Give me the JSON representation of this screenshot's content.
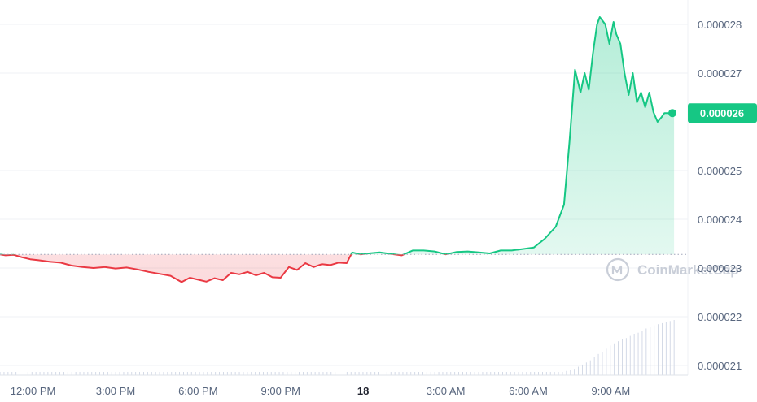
{
  "chart_data": {
    "type": "area",
    "y_ticks": [
      "0.000028",
      "0.000027",
      "0.000025",
      "0.000024",
      "0.000023",
      "0.000022",
      "0.000021"
    ],
    "y_tick_values": [
      2.8e-05,
      2.7e-05,
      2.5e-05,
      2.4e-05,
      2.3e-05,
      2.2e-05,
      2.1e-05
    ],
    "ylim": [
      2.08e-05,
      2.85e-05
    ],
    "baseline": 2.328e-05,
    "current_price": "0.000026",
    "current_value": 2.618e-05,
    "x_ticks": [
      "12:00 PM",
      "3:00 PM",
      "6:00 PM",
      "9:00 PM",
      "18",
      "3:00 AM",
      "6:00 AM",
      "9:00 AM"
    ],
    "x_tick_hours": [
      12,
      15,
      18,
      21,
      24,
      27,
      30,
      33
    ],
    "xlim": [
      10.8,
      35.8
    ],
    "bold_x_tick": "18",
    "colors": {
      "up": "#16c784",
      "down": "#ea3943",
      "volume": "#cfd6e4",
      "grid": "#eff2f5"
    },
    "series": [
      {
        "x": [
          10.8,
          11.0,
          11.3,
          11.6,
          11.9,
          12.2,
          12.6,
          13.0,
          13.4,
          13.8,
          14.2,
          14.6,
          15.0,
          15.4,
          15.8,
          16.2,
          16.6,
          17.0,
          17.4,
          17.7,
          18.0,
          18.3,
          18.6,
          18.9,
          19.2,
          19.5,
          19.8,
          20.1,
          20.4,
          20.7,
          21.0,
          21.3,
          21.6,
          21.9,
          22.2,
          22.5,
          22.8,
          23.1,
          23.4,
          23.6,
          23.9,
          24.2,
          24.6,
          25.0,
          25.4,
          25.8,
          26.2,
          26.6,
          27.0,
          27.4,
          27.8,
          28.2,
          28.6,
          29.0,
          29.4,
          29.8,
          30.2,
          30.6,
          31.0,
          31.3,
          31.5,
          31.7,
          31.9,
          32.05,
          32.2,
          32.35,
          32.5,
          32.6,
          32.8,
          32.95,
          33.1,
          33.2,
          33.35,
          33.5,
          33.65,
          33.8,
          33.95,
          34.1,
          34.25,
          34.4,
          34.55,
          34.7,
          34.85,
          34.95,
          35.1,
          35.3
        ],
        "values": [
          2.328e-05,
          2.326e-05,
          2.327e-05,
          2.322e-05,
          2.318e-05,
          2.316e-05,
          2.313e-05,
          2.311e-05,
          2.305e-05,
          2.302e-05,
          2.3e-05,
          2.302e-05,
          2.299e-05,
          2.301e-05,
          2.297e-05,
          2.292e-05,
          2.288e-05,
          2.284e-05,
          2.271e-05,
          2.28e-05,
          2.276e-05,
          2.272e-05,
          2.279e-05,
          2.275e-05,
          2.29e-05,
          2.287e-05,
          2.292e-05,
          2.285e-05,
          2.29e-05,
          2.281e-05,
          2.28e-05,
          2.302e-05,
          2.296e-05,
          2.31e-05,
          2.302e-05,
          2.308e-05,
          2.306e-05,
          2.311e-05,
          2.31e-05,
          2.332e-05,
          2.328e-05,
          2.33e-05,
          2.332e-05,
          2.329e-05,
          2.326e-05,
          2.336e-05,
          2.336e-05,
          2.334e-05,
          2.328e-05,
          2.333e-05,
          2.334e-05,
          2.332e-05,
          2.33e-05,
          2.336e-05,
          2.336e-05,
          2.339e-05,
          2.342e-05,
          2.36e-05,
          2.385e-05,
          2.43e-05,
          2.56e-05,
          2.707e-05,
          2.66e-05,
          2.7e-05,
          2.666e-05,
          2.74e-05,
          2.8e-05,
          2.815e-05,
          2.8e-05,
          2.76e-05,
          2.805e-05,
          2.78e-05,
          2.76e-05,
          2.7e-05,
          2.655e-05,
          2.7e-05,
          2.64e-05,
          2.66e-05,
          2.63e-05,
          2.66e-05,
          2.62e-05,
          2.6e-05,
          2.61e-05,
          2.618e-05,
          2.618e-05,
          2.618e-05
        ]
      }
    ],
    "volume": {
      "start": 10.8,
      "end": 35.3,
      "count": 170,
      "values": [
        1,
        1,
        1,
        1,
        1,
        1,
        1,
        1,
        1,
        1,
        1,
        1,
        1,
        1,
        1,
        1,
        1,
        1,
        1,
        1,
        1,
        1,
        1,
        1,
        1,
        1,
        1,
        1,
        1,
        1,
        1,
        1,
        1,
        1,
        1,
        1,
        1,
        1,
        1,
        1,
        1,
        1,
        1,
        1,
        1,
        1,
        1,
        1,
        1,
        1,
        1,
        1,
        1,
        1,
        1,
        1,
        1,
        1,
        1,
        1,
        1,
        1,
        1,
        1,
        1,
        1,
        1,
        1,
        1,
        1,
        1,
        1,
        1,
        1,
        1,
        1,
        1,
        1,
        1,
        1,
        1,
        1,
        1,
        1,
        1,
        1,
        1,
        1,
        1,
        1,
        1,
        1,
        1,
        1,
        1,
        1,
        1,
        1,
        1,
        1,
        1,
        1,
        1,
        1,
        1,
        1,
        1,
        1,
        1,
        1,
        1,
        1,
        1,
        1,
        1,
        1,
        1,
        1,
        1,
        1,
        1,
        1,
        1,
        1,
        1,
        1,
        1,
        1,
        1,
        1,
        1,
        1,
        1,
        1,
        1,
        1,
        1,
        1,
        1,
        1,
        2,
        3,
        4,
        5,
        6,
        8,
        10,
        12,
        14,
        17,
        20,
        22,
        25,
        28,
        30,
        32,
        34,
        35,
        37,
        39,
        40,
        42,
        44,
        45,
        47,
        48,
        49,
        50,
        51,
        52
      ]
    }
  },
  "watermark": {
    "label": "CoinMarketCap",
    "icon": "coinmarketcap-logo-icon"
  }
}
